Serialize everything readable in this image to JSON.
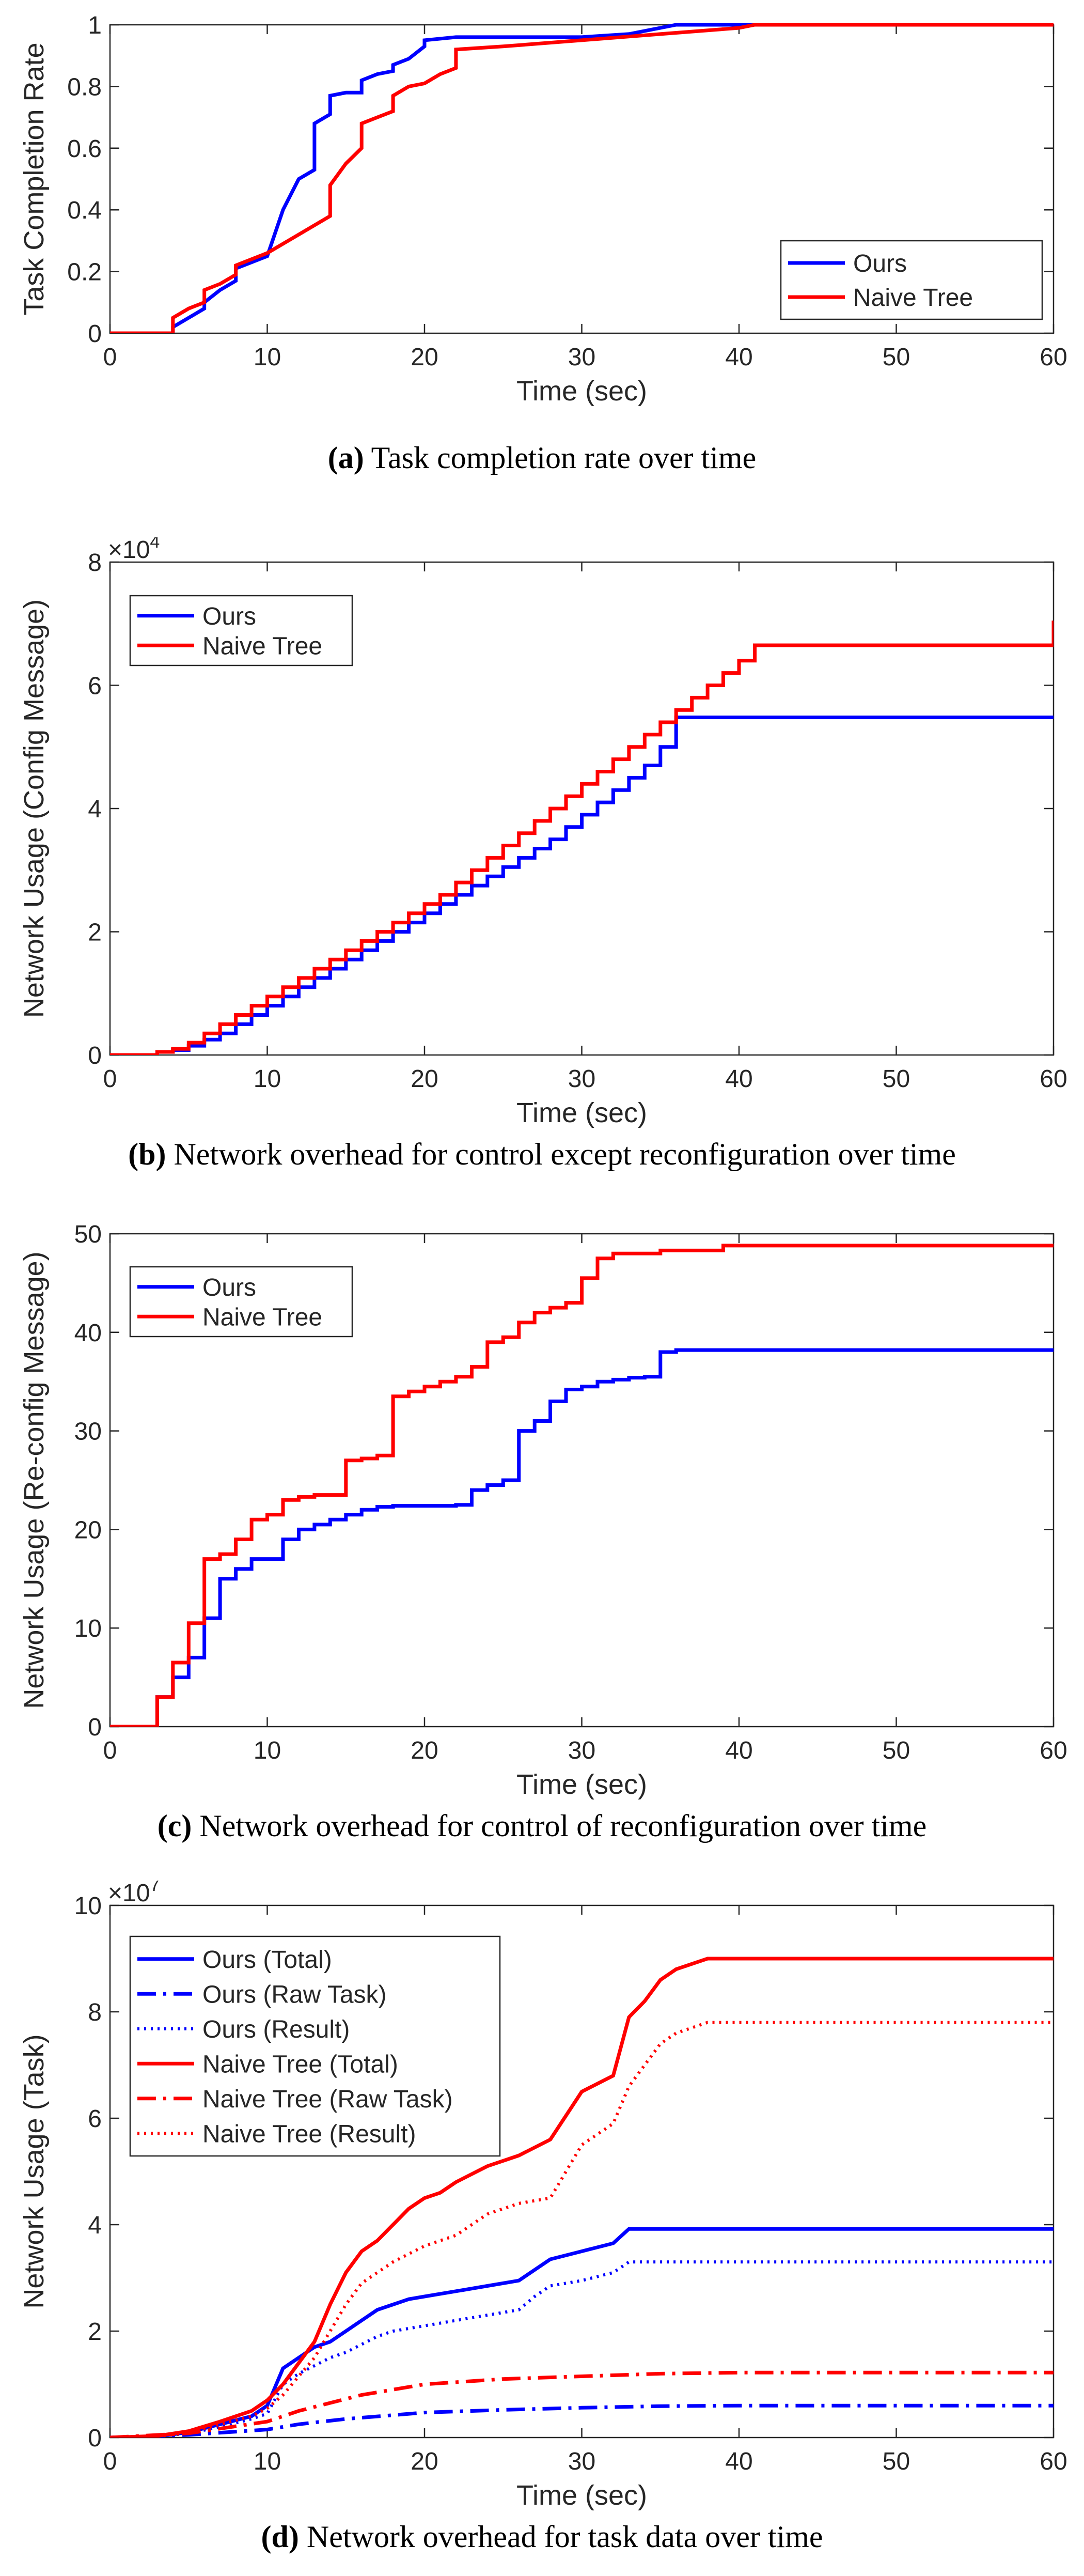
{
  "colors": {
    "ours": "#0000ff",
    "naive": "#ff0000",
    "axis": "#262626"
  },
  "chart_data": [
    {
      "type": "line",
      "id": "a",
      "title": "",
      "xlabel": "Time (sec)",
      "ylabel": "Task Completion Rate",
      "xlim": [
        0,
        60
      ],
      "ylim": [
        0,
        1
      ],
      "xticks": [
        0,
        10,
        20,
        30,
        40,
        50,
        60
      ],
      "yticks": [
        0,
        0.2,
        0.4,
        0.6,
        0.8,
        1
      ],
      "ytick_labels": [
        "0",
        "0.2",
        "0.4",
        "0.6",
        "0.8",
        "1"
      ],
      "legend": "bottom-right",
      "series": [
        {
          "name": "Ours",
          "color": "#0000ff",
          "style": "solid",
          "x": [
            0,
            4,
            4,
            5,
            6,
            6,
            7,
            8,
            8,
            10,
            11,
            12,
            13,
            13,
            14,
            14,
            15,
            16,
            16,
            17,
            18,
            18,
            19,
            20,
            20,
            22,
            25,
            30,
            33,
            34,
            36,
            60
          ],
          "y": [
            0,
            0,
            0.02,
            0.05,
            0.08,
            0.1,
            0.14,
            0.17,
            0.21,
            0.25,
            0.4,
            0.5,
            0.53,
            0.68,
            0.71,
            0.77,
            0.78,
            0.78,
            0.82,
            0.84,
            0.85,
            0.87,
            0.89,
            0.93,
            0.95,
            0.96,
            0.96,
            0.96,
            0.97,
            0.98,
            1,
            1
          ]
        },
        {
          "name": "Naive Tree",
          "color": "#ff0000",
          "style": "solid",
          "x": [
            0,
            4,
            4,
            5,
            6,
            6,
            7,
            8,
            8,
            10,
            12,
            14,
            14,
            15,
            16,
            16,
            17,
            18,
            18,
            19,
            20,
            21,
            22,
            22,
            25,
            30,
            35,
            40,
            41,
            60
          ],
          "y": [
            0,
            0,
            0.05,
            0.08,
            0.1,
            0.14,
            0.16,
            0.19,
            0.22,
            0.26,
            0.32,
            0.38,
            0.48,
            0.55,
            0.6,
            0.68,
            0.7,
            0.72,
            0.77,
            0.8,
            0.81,
            0.84,
            0.86,
            0.92,
            0.93,
            0.95,
            0.97,
            0.99,
            1,
            1
          ]
        }
      ]
    },
    {
      "type": "line",
      "id": "b",
      "title": "",
      "exponent_label": "×10",
      "exponent_power": "4",
      "xlabel": "Time (sec)",
      "ylabel": "Network Usage (Config Message)",
      "xlim": [
        0,
        60
      ],
      "ylim": [
        0,
        80000
      ],
      "xticks": [
        0,
        10,
        20,
        30,
        40,
        50,
        60
      ],
      "yticks": [
        0,
        20000,
        40000,
        60000,
        80000
      ],
      "ytick_labels": [
        "0",
        "2",
        "4",
        "6",
        "8"
      ],
      "legend": "top-left",
      "series": [
        {
          "name": "Ours",
          "color": "#0000ff",
          "style": "step",
          "x": [
            0,
            3,
            4,
            5,
            6,
            7,
            8,
            9,
            10,
            11,
            12,
            13,
            14,
            15,
            16,
            17,
            18,
            19,
            20,
            21,
            22,
            23,
            24,
            25,
            26,
            27,
            28,
            29,
            30,
            31,
            32,
            33,
            34,
            35,
            36,
            60
          ],
          "y": [
            0,
            500,
            800,
            1500,
            2500,
            3500,
            5000,
            6500,
            8000,
            9500,
            11000,
            12500,
            14000,
            15500,
            17000,
            18500,
            20000,
            21500,
            23000,
            24500,
            26000,
            27500,
            29000,
            30500,
            32000,
            33500,
            35000,
            37000,
            39000,
            41000,
            43000,
            45000,
            47000,
            50000,
            54800,
            54800
          ]
        },
        {
          "name": "Naive Tree",
          "color": "#ff0000",
          "style": "step",
          "x": [
            0,
            3,
            4,
            5,
            6,
            7,
            8,
            9,
            10,
            11,
            12,
            13,
            14,
            15,
            16,
            17,
            18,
            19,
            20,
            21,
            22,
            23,
            24,
            25,
            26,
            27,
            28,
            29,
            30,
            31,
            32,
            33,
            34,
            35,
            36,
            37,
            38,
            39,
            40,
            41,
            60
          ],
          "y": [
            0,
            500,
            1000,
            2000,
            3500,
            5000,
            6500,
            8000,
            9500,
            11000,
            12500,
            14000,
            15500,
            17000,
            18500,
            20000,
            21500,
            23000,
            24500,
            26000,
            28000,
            30000,
            32000,
            34000,
            36000,
            38000,
            40000,
            42000,
            44000,
            46000,
            48000,
            50000,
            52000,
            54000,
            56000,
            58000,
            60000,
            62000,
            64000,
            66500,
            70500
          ]
        }
      ]
    },
    {
      "type": "line",
      "id": "c",
      "title": "",
      "xlabel": "Time (sec)",
      "ylabel": "Network Usage (Re-config Message)",
      "xlim": [
        0,
        60
      ],
      "ylim": [
        0,
        50
      ],
      "xticks": [
        0,
        10,
        20,
        30,
        40,
        50,
        60
      ],
      "yticks": [
        0,
        10,
        20,
        30,
        40,
        50
      ],
      "ytick_labels": [
        "0",
        "10",
        "20",
        "30",
        "40",
        "50"
      ],
      "legend": "top-left",
      "series": [
        {
          "name": "Ours",
          "color": "#0000ff",
          "style": "step",
          "x": [
            0,
            3,
            4,
            5,
            6,
            7,
            8,
            9,
            10,
            11,
            12,
            13,
            14,
            15,
            16,
            17,
            18,
            19,
            20,
            21,
            22,
            23,
            24,
            25,
            26,
            27,
            28,
            29,
            30,
            31,
            32,
            33,
            34,
            35,
            36,
            60
          ],
          "y": [
            0,
            3,
            5,
            7,
            11,
            15,
            16,
            17,
            17,
            19,
            20,
            20.5,
            21,
            21.5,
            22,
            22.3,
            22.4,
            22.4,
            22.4,
            22.4,
            22.5,
            24,
            24.5,
            25,
            30,
            31,
            33,
            34.2,
            34.5,
            35,
            35.2,
            35.4,
            35.5,
            38,
            38.2,
            38.2
          ]
        },
        {
          "name": "Naive Tree",
          "color": "#ff0000",
          "style": "step",
          "x": [
            0,
            3,
            4,
            5,
            6,
            7,
            8,
            9,
            10,
            11,
            12,
            13,
            14,
            15,
            16,
            17,
            18,
            19,
            20,
            21,
            22,
            23,
            24,
            25,
            26,
            27,
            28,
            29,
            30,
            31,
            32,
            35,
            39,
            60
          ],
          "y": [
            0,
            3,
            6.5,
            10.5,
            17,
            17.5,
            19,
            21,
            21.5,
            23,
            23.3,
            23.5,
            23.5,
            27,
            27.2,
            27.5,
            33.5,
            34,
            34.5,
            35,
            35.5,
            36.5,
            39,
            39.5,
            41,
            42,
            42.5,
            43,
            45.5,
            47.5,
            48,
            48.3,
            48.8,
            48.8
          ]
        }
      ]
    },
    {
      "type": "line",
      "id": "d",
      "title": "",
      "exponent_label": "×10",
      "exponent_power": "7",
      "xlabel": "Time (sec)",
      "ylabel": "Network Usage (Task)",
      "xlim": [
        0,
        60
      ],
      "ylim": [
        0,
        100000000
      ],
      "xticks": [
        0,
        10,
        20,
        30,
        40,
        50,
        60
      ],
      "yticks": [
        0,
        20000000,
        40000000,
        60000000,
        80000000,
        100000000
      ],
      "ytick_labels": [
        "0",
        "2",
        "4",
        "6",
        "8",
        "10"
      ],
      "legend": "top-left",
      "series": [
        {
          "name": "Ours (Total)",
          "color": "#0000ff",
          "style": "solid",
          "x": [
            0,
            3,
            5,
            7,
            9,
            10,
            11,
            12,
            13,
            14,
            15,
            16,
            17,
            18,
            19,
            20,
            22,
            24,
            26,
            27,
            28,
            30,
            32,
            33,
            60
          ],
          "y": [
            0,
            200000,
            1000000,
            2500000,
            4000000,
            6000000,
            13000000,
            15000000,
            17000000,
            18000000,
            20000000,
            22000000,
            24000000,
            25000000,
            26000000,
            26500000,
            27500000,
            28500000,
            29500000,
            31500000,
            33500000,
            35000000,
            36500000,
            39200000,
            39200000
          ]
        },
        {
          "name": "Ours (Raw Task)",
          "color": "#0000ff",
          "style": "dashdot",
          "x": [
            0,
            5,
            10,
            12,
            15,
            18,
            20,
            25,
            30,
            35,
            40,
            60
          ],
          "y": [
            0,
            500000,
            1500000,
            2500000,
            3500000,
            4200000,
            4700000,
            5200000,
            5600000,
            5900000,
            6000000,
            6000000
          ]
        },
        {
          "name": "Ours (Result)",
          "color": "#0000ff",
          "style": "dotted",
          "x": [
            0,
            3,
            5,
            7,
            9,
            10,
            11,
            12,
            13,
            14,
            15,
            16,
            17,
            18,
            20,
            22,
            24,
            26,
            27,
            28,
            30,
            32,
            33,
            60
          ],
          "y": [
            0,
            200000,
            800000,
            2000000,
            3500000,
            4500000,
            10000000,
            12000000,
            13500000,
            15000000,
            16000000,
            17500000,
            19000000,
            20000000,
            21000000,
            22000000,
            23000000,
            24000000,
            26500000,
            28500000,
            29500000,
            31000000,
            33000000,
            33000000
          ]
        },
        {
          "name": "Naive Tree (Total)",
          "color": "#ff0000",
          "style": "solid",
          "x": [
            0,
            3,
            5,
            7,
            9,
            10,
            11,
            12,
            13,
            14,
            15,
            16,
            17,
            18,
            19,
            20,
            21,
            22,
            24,
            26,
            28,
            30,
            31,
            32,
            33,
            34,
            35,
            36,
            38,
            60
          ],
          "y": [
            0,
            300000,
            1200000,
            3000000,
            5000000,
            7000000,
            10000000,
            14000000,
            18000000,
            25000000,
            31000000,
            35000000,
            37000000,
            40000000,
            43000000,
            45000000,
            46000000,
            48000000,
            51000000,
            53000000,
            56000000,
            65000000,
            66500000,
            68000000,
            79000000,
            82000000,
            86000000,
            88000000,
            90000000,
            90000000
          ]
        },
        {
          "name": "Naive Tree (Raw Task)",
          "color": "#ff0000",
          "style": "dashdot",
          "x": [
            0,
            5,
            10,
            12,
            14,
            16,
            18,
            20,
            25,
            30,
            35,
            40,
            60
          ],
          "y": [
            0,
            800000,
            3000000,
            5000000,
            6500000,
            8000000,
            9000000,
            10000000,
            11000000,
            11500000,
            12000000,
            12200000,
            12200000
          ]
        },
        {
          "name": "Naive Tree (Result)",
          "color": "#ff0000",
          "style": "dotted",
          "x": [
            0,
            3,
            5,
            7,
            9,
            10,
            11,
            12,
            13,
            14,
            15,
            16,
            17,
            18,
            20,
            22,
            24,
            26,
            28,
            30,
            31,
            32,
            33,
            34,
            35,
            36,
            38,
            60
          ],
          "y": [
            0,
            200000,
            900000,
            2500000,
            4000000,
            5500000,
            8000000,
            11500000,
            15000000,
            20000000,
            25000000,
            29000000,
            31000000,
            33000000,
            36000000,
            38000000,
            42000000,
            44000000,
            45000000,
            55000000,
            57000000,
            59000000,
            66000000,
            70000000,
            74000000,
            76000000,
            78000000,
            78000000
          ]
        }
      ]
    }
  ],
  "captions": [
    {
      "label": "(a)",
      "text": " Task completion rate over time"
    },
    {
      "label": "(b)",
      "text": " Network overhead for control except reconfiguration over time"
    },
    {
      "label": "(c)",
      "text": " Network overhead for control of reconfiguration over time"
    },
    {
      "label": "(d)",
      "text": " Network overhead for task data over time"
    }
  ]
}
